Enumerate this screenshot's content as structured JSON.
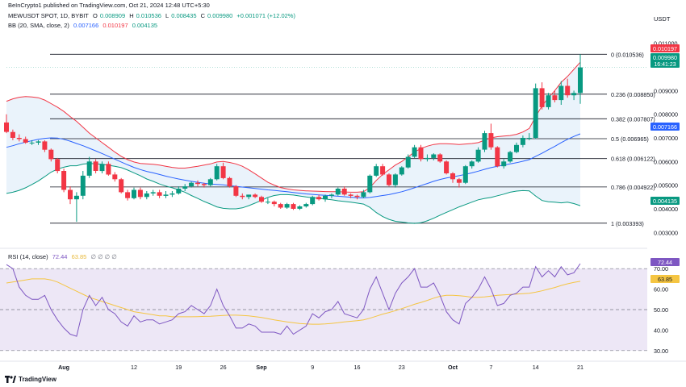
{
  "header": {
    "credit": "BeInCrypto1 published on TradingView.com, Oct 21, 2024 12:48 UTC+5:30",
    "symbol_line": "MEWUSDT SPOT, 1D, BYBIT",
    "o_label": "O",
    "o": "0.008909",
    "h_label": "H",
    "h": "0.010536",
    "l_label": "L",
    "l": "0.008435",
    "c_label": "C",
    "c": "0.009980",
    "change": "+0.001071 (+12.02%)",
    "bb_label": "BB (20, SMA, close, 2)",
    "bb_basis": "0.007166",
    "bb_upper": "0.010197",
    "bb_lower": "0.004135",
    "rsi_label": "RSI (14, close)",
    "rsi_value": "72.44",
    "rsi_ma": "63.85",
    "rsi_extras": "∅ ∅ ∅ ∅"
  },
  "axis": {
    "currency": "USDT",
    "price_ticks": [
      "0.011000",
      "0.009000",
      "0.008000",
      "0.007000",
      "0.006000",
      "0.005000",
      "0.004000",
      "0.003000"
    ],
    "rsi_ticks": [
      "70.00",
      "60.00",
      "50.00",
      "40.00",
      "30.00"
    ],
    "date_labels": [
      "Aug",
      "12",
      "19",
      "26",
      "Sep",
      "9",
      "16",
      "23",
      "Oct",
      "7",
      "14",
      "21"
    ],
    "countdown": "16:41:23"
  },
  "badges": {
    "bb_upper": "0.010197",
    "last_price": "0.009980",
    "bb_basis": "0.007166",
    "bb_lower": "0.004135",
    "rsi": "72.44",
    "rsi_ma": "63.85"
  },
  "fib_levels": [
    {
      "label": "0 (0.010536)",
      "value": 0.010536
    },
    {
      "label": "0.236 (0.008850)",
      "value": 0.00885
    },
    {
      "label": "0.382 (0.007807)",
      "value": 0.007807
    },
    {
      "label": "0.5 (0.006965)",
      "value": 0.006965
    },
    {
      "label": "0.618 (0.006122)",
      "value": 0.006122
    },
    {
      "label": "0.786 (0.004922)",
      "value": 0.004922
    },
    {
      "label": "1 (0.003393)",
      "value": 0.003393
    }
  ],
  "colors": {
    "up": "#089981",
    "down": "#f23645",
    "bb_upper": "#f23645",
    "bb_basis": "#2962ff",
    "bb_lower": "#089981",
    "bb_fill": "#eaf3fb",
    "rsi": "#7e57c2",
    "rsi_ma": "#f5c542",
    "rsi_band": "#ede7f6",
    "fib": "#131722"
  },
  "logo": "TradingView",
  "chart_data": {
    "type": "candlestick",
    "x": [
      "Jul 23",
      "Jul 24",
      "Jul 25",
      "Jul 26",
      "Jul 27",
      "Jul 28",
      "Jul 29",
      "Jul 30",
      "Jul 31",
      "Aug 1",
      "Aug 2",
      "Aug 3",
      "Aug 4",
      "Aug 5",
      "Aug 6",
      "Aug 7",
      "Aug 8",
      "Aug 9",
      "Aug 10",
      "Aug 11",
      "Aug 12",
      "Aug 13",
      "Aug 14",
      "Aug 15",
      "Aug 16",
      "Aug 17",
      "Aug 18",
      "Aug 19",
      "Aug 20",
      "Aug 21",
      "Aug 22",
      "Aug 23",
      "Aug 24",
      "Aug 25",
      "Aug 26",
      "Aug 27",
      "Aug 28",
      "Aug 29",
      "Aug 30",
      "Aug 31",
      "Sep 1",
      "Sep 2",
      "Sep 3",
      "Sep 4",
      "Sep 5",
      "Sep 6",
      "Sep 7",
      "Sep 8",
      "Sep 9",
      "Sep 10",
      "Sep 11",
      "Sep 12",
      "Sep 13",
      "Sep 14",
      "Sep 15",
      "Sep 16",
      "Sep 17",
      "Sep 18",
      "Sep 19",
      "Sep 20",
      "Sep 21",
      "Sep 22",
      "Sep 23",
      "Sep 24",
      "Sep 25",
      "Sep 26",
      "Sep 27",
      "Sep 28",
      "Sep 29",
      "Sep 30",
      "Oct 1",
      "Oct 2",
      "Oct 3",
      "Oct 4",
      "Oct 5",
      "Oct 6",
      "Oct 7",
      "Oct 8",
      "Oct 9",
      "Oct 10",
      "Oct 11",
      "Oct 12",
      "Oct 13",
      "Oct 14",
      "Oct 15",
      "Oct 16",
      "Oct 17",
      "Oct 18",
      "Oct 19",
      "Oct 20",
      "Oct 21"
    ],
    "open": [
      0.00765,
      0.00725,
      0.007,
      0.00695,
      0.0068,
      0.0068,
      0.00685,
      0.0065,
      0.0061,
      0.0056,
      0.0048,
      0.0044,
      0.00455,
      0.0054,
      0.006,
      0.0056,
      0.0059,
      0.00545,
      0.00525,
      0.0047,
      0.00445,
      0.0048,
      0.0045,
      0.00465,
      0.0047,
      0.00455,
      0.0046,
      0.00465,
      0.00485,
      0.00495,
      0.0051,
      0.00505,
      0.005,
      0.00525,
      0.0058,
      0.0053,
      0.00495,
      0.00455,
      0.0045,
      0.0046,
      0.0045,
      0.0043,
      0.0043,
      0.0042,
      0.00405,
      0.0042,
      0.004,
      0.0041,
      0.0042,
      0.0045,
      0.0044,
      0.00455,
      0.0046,
      0.00485,
      0.0046,
      0.00455,
      0.0045,
      0.0047,
      0.0054,
      0.0058,
      0.00545,
      0.005,
      0.00545,
      0.00575,
      0.0062,
      0.0066,
      0.0061,
      0.00615,
      0.0063,
      0.006,
      0.0055,
      0.00525,
      0.0051,
      0.0058,
      0.006,
      0.0065,
      0.0072,
      0.0066,
      0.0058,
      0.006,
      0.0064,
      0.0067,
      0.007,
      0.007,
      0.0091,
      0.0083,
      0.0088,
      0.0086,
      0.0092,
      0.0088,
      0.0089
    ],
    "high": [
      0.008,
      0.00735,
      0.00715,
      0.00705,
      0.0069,
      0.0069,
      0.0069,
      0.00655,
      0.00615,
      0.0057,
      0.00495,
      0.0047,
      0.0056,
      0.0062,
      0.0061,
      0.006,
      0.006,
      0.00555,
      0.0053,
      0.0048,
      0.0049,
      0.0049,
      0.00475,
      0.0048,
      0.0048,
      0.00475,
      0.00475,
      0.00495,
      0.00505,
      0.00515,
      0.0052,
      0.0051,
      0.0053,
      0.0059,
      0.00595,
      0.00535,
      0.005,
      0.00465,
      0.0046,
      0.00465,
      0.00455,
      0.00445,
      0.00435,
      0.00425,
      0.00425,
      0.00425,
      0.00415,
      0.00425,
      0.00455,
      0.0046,
      0.0046,
      0.00465,
      0.0049,
      0.00495,
      0.00465,
      0.0046,
      0.0048,
      0.00545,
      0.0059,
      0.0059,
      0.0055,
      0.0055,
      0.0058,
      0.0063,
      0.0067,
      0.0067,
      0.0063,
      0.00635,
      0.00635,
      0.00605,
      0.00555,
      0.0053,
      0.00585,
      0.00605,
      0.0066,
      0.0073,
      0.0076,
      0.00665,
      0.0061,
      0.00645,
      0.0068,
      0.0071,
      0.0072,
      0.0093,
      0.00935,
      0.0089,
      0.009,
      0.0094,
      0.0095,
      0.009,
      0.01054
    ],
    "low": [
      0.0072,
      0.0069,
      0.00685,
      0.00675,
      0.0067,
      0.0067,
      0.0064,
      0.006,
      0.0055,
      0.0047,
      0.0042,
      0.00345,
      0.0044,
      0.0053,
      0.0055,
      0.0055,
      0.0054,
      0.00515,
      0.00465,
      0.00435,
      0.0044,
      0.0044,
      0.0044,
      0.00455,
      0.00445,
      0.00445,
      0.0045,
      0.0046,
      0.00475,
      0.0049,
      0.00495,
      0.0049,
      0.00495,
      0.0052,
      0.00525,
      0.0049,
      0.0045,
      0.0044,
      0.0044,
      0.00445,
      0.00425,
      0.0042,
      0.0041,
      0.004,
      0.004,
      0.00395,
      0.00395,
      0.00405,
      0.00415,
      0.00435,
      0.0043,
      0.00445,
      0.00455,
      0.00455,
      0.00445,
      0.0044,
      0.00445,
      0.00465,
      0.00535,
      0.0054,
      0.00495,
      0.0049,
      0.0054,
      0.0057,
      0.00615,
      0.006,
      0.006,
      0.00605,
      0.00595,
      0.00545,
      0.0051,
      0.0049,
      0.00505,
      0.0057,
      0.00595,
      0.0064,
      0.0065,
      0.00575,
      0.0057,
      0.00595,
      0.00635,
      0.0066,
      0.0069,
      0.00695,
      0.0082,
      0.0082,
      0.0085,
      0.0084,
      0.0087,
      0.0086,
      0.00844
    ],
    "close": [
      0.00725,
      0.007,
      0.00695,
      0.0068,
      0.0068,
      0.00685,
      0.0065,
      0.0061,
      0.0056,
      0.0048,
      0.0044,
      0.00455,
      0.0054,
      0.006,
      0.0056,
      0.0059,
      0.00545,
      0.00525,
      0.0047,
      0.00445,
      0.0048,
      0.0045,
      0.00465,
      0.0047,
      0.00455,
      0.0046,
      0.00465,
      0.00485,
      0.00495,
      0.0051,
      0.00505,
      0.005,
      0.00525,
      0.0058,
      0.0053,
      0.00495,
      0.00455,
      0.0045,
      0.0046,
      0.0045,
      0.0043,
      0.0043,
      0.0042,
      0.00405,
      0.0042,
      0.004,
      0.0041,
      0.0042,
      0.0045,
      0.0044,
      0.00455,
      0.0046,
      0.00485,
      0.0046,
      0.00455,
      0.0045,
      0.0047,
      0.0054,
      0.0058,
      0.00545,
      0.005,
      0.00545,
      0.00575,
      0.0062,
      0.0066,
      0.0061,
      0.00615,
      0.0063,
      0.006,
      0.0055,
      0.00525,
      0.0051,
      0.0058,
      0.006,
      0.0065,
      0.0072,
      0.0066,
      0.0058,
      0.006,
      0.0064,
      0.0067,
      0.007,
      0.007,
      0.0091,
      0.0083,
      0.0088,
      0.0086,
      0.0092,
      0.0088,
      0.0089,
      0.00998
    ],
    "bb_upper_values": [
      0.00855,
      0.00865,
      0.00872,
      0.00875,
      0.00873,
      0.0087,
      0.0086,
      0.00845,
      0.0083,
      0.00812,
      0.0079,
      0.0077,
      0.00745,
      0.0072,
      0.007,
      0.0068,
      0.0066,
      0.0064,
      0.00622,
      0.00608,
      0.00598,
      0.00592,
      0.0059,
      0.00588,
      0.00585,
      0.0058,
      0.00575,
      0.00572,
      0.00572,
      0.00576,
      0.0058,
      0.00585,
      0.0059,
      0.00598,
      0.006,
      0.00596,
      0.0059,
      0.0058,
      0.00565,
      0.00548,
      0.0053,
      0.00512,
      0.005,
      0.0049,
      0.00484,
      0.0048,
      0.00478,
      0.00476,
      0.00475,
      0.00474,
      0.00473,
      0.00472,
      0.00472,
      0.00471,
      0.0047,
      0.0047,
      0.00472,
      0.0049,
      0.0052,
      0.00545,
      0.00565,
      0.00585,
      0.006,
      0.0062,
      0.0064,
      0.00655,
      0.00665,
      0.00672,
      0.00675,
      0.00675,
      0.00674,
      0.00672,
      0.00674,
      0.00676,
      0.0068,
      0.0069,
      0.007,
      0.00705,
      0.00708,
      0.0071,
      0.00715,
      0.00725,
      0.0074,
      0.0079,
      0.00835,
      0.0087,
      0.009,
      0.00935,
      0.0096,
      0.0099,
      0.0102
    ],
    "bb_basis_values": [
      0.0066,
      0.00667,
      0.00675,
      0.00682,
      0.00688,
      0.00694,
      0.00698,
      0.007,
      0.00699,
      0.00694,
      0.00686,
      0.00676,
      0.00667,
      0.00656,
      0.00645,
      0.00634,
      0.00622,
      0.0061,
      0.00598,
      0.00586,
      0.00575,
      0.00566,
      0.00558,
      0.00552,
      0.00545,
      0.00538,
      0.00532,
      0.00526,
      0.00521,
      0.00516,
      0.00512,
      0.00508,
      0.00505,
      0.00503,
      0.00501,
      0.00498,
      0.00495,
      0.00492,
      0.00489,
      0.00486,
      0.00483,
      0.0048,
      0.00478,
      0.00475,
      0.00472,
      0.00469,
      0.00466,
      0.00463,
      0.00461,
      0.00459,
      0.00457,
      0.00455,
      0.00453,
      0.00451,
      0.00449,
      0.00447,
      0.00446,
      0.00448,
      0.00452,
      0.00456,
      0.0046,
      0.00466,
      0.00472,
      0.0048,
      0.00489,
      0.00498,
      0.00507,
      0.00516,
      0.00524,
      0.0053,
      0.00535,
      0.0054,
      0.00546,
      0.00552,
      0.00559,
      0.00567,
      0.00574,
      0.0058,
      0.00585,
      0.0059,
      0.00595,
      0.00601,
      0.00608,
      0.00622,
      0.00635,
      0.0065,
      0.00664,
      0.0068,
      0.00694,
      0.00706,
      0.00717
    ],
    "bb_lower_values": [
      0.00465,
      0.0047,
      0.00478,
      0.00489,
      0.00503,
      0.00518,
      0.00536,
      0.00555,
      0.00568,
      0.00576,
      0.00582,
      0.00582,
      0.00589,
      0.00592,
      0.0059,
      0.00588,
      0.00584,
      0.0058,
      0.00574,
      0.00564,
      0.00552,
      0.0054,
      0.00526,
      0.00516,
      0.00505,
      0.00496,
      0.00489,
      0.0048,
      0.0047,
      0.00456,
      0.00444,
      0.00431,
      0.0042,
      0.00408,
      0.00402,
      0.004,
      0.004,
      0.00404,
      0.00413,
      0.00424,
      0.00436,
      0.00448,
      0.00456,
      0.0046,
      0.0046,
      0.00458,
      0.00454,
      0.0045,
      0.00447,
      0.00444,
      0.00441,
      0.00438,
      0.00434,
      0.00431,
      0.00428,
      0.00424,
      0.0042,
      0.00406,
      0.00384,
      0.00367,
      0.00355,
      0.00347,
      0.00344,
      0.0034,
      0.00338,
      0.00341,
      0.00349,
      0.0036,
      0.00373,
      0.00385,
      0.00396,
      0.00408,
      0.00418,
      0.00428,
      0.00438,
      0.00444,
      0.00448,
      0.00455,
      0.00462,
      0.0047,
      0.00475,
      0.00477,
      0.00476,
      0.00454,
      0.00435,
      0.0043,
      0.00428,
      0.00425,
      0.00428,
      0.00422,
      0.00413
    ],
    "rsi_values": [
      72,
      70,
      61,
      57,
      55,
      55,
      57,
      50,
      45,
      41,
      38,
      37,
      50,
      57,
      52,
      56,
      50,
      48,
      44,
      42,
      47,
      44,
      45,
      45,
      43,
      44,
      45,
      48,
      49,
      52,
      50,
      48,
      52,
      60,
      52,
      47,
      41,
      41,
      43,
      42,
      39,
      39,
      39,
      38,
      42,
      38,
      40,
      42,
      48,
      46,
      49,
      50,
      54,
      48,
      47,
      46,
      50,
      60,
      66,
      58,
      50,
      58,
      63,
      66,
      70,
      61,
      61,
      63,
      57,
      49,
      45,
      43,
      53,
      56,
      60,
      66,
      60,
      52,
      53,
      57,
      58,
      61,
      61,
      71,
      66,
      69,
      66,
      71,
      67,
      68,
      72.44
    ],
    "rsi_ma_values": [
      63,
      63.5,
      64,
      64.5,
      65,
      65,
      65,
      64.5,
      63.5,
      62,
      60.5,
      59,
      57.5,
      56,
      55,
      54,
      53,
      52,
      51,
      50,
      49,
      48.5,
      48,
      47.5,
      47,
      47,
      46.5,
      46.5,
      46.5,
      46.5,
      46.6,
      46.7,
      46.8,
      47,
      47.2,
      47.3,
      47.3,
      47.2,
      47,
      46.6,
      46.2,
      45.6,
      45,
      44.5,
      44,
      43.6,
      43.2,
      43,
      42.9,
      42.9,
      43,
      43.3,
      43.6,
      44,
      44.3,
      44.6,
      45,
      45.8,
      46.8,
      47.8,
      48.6,
      49.5,
      50.5,
      51.5,
      52.6,
      53.5,
      54.5,
      55.6,
      56.5,
      57,
      57,
      56.8,
      56.5,
      56,
      56,
      56.2,
      56.6,
      57,
      57.2,
      57.4,
      57.6,
      57.8,
      58,
      58.5,
      59.2,
      60,
      60.8,
      61.8,
      62.6,
      63.3,
      63.85
    ],
    "rsi_levels": [
      70,
      50,
      30
    ],
    "price_range": [
      0.0026,
      0.0114
    ],
    "rsi_range": [
      26,
      76
    ],
    "grid": false
  }
}
